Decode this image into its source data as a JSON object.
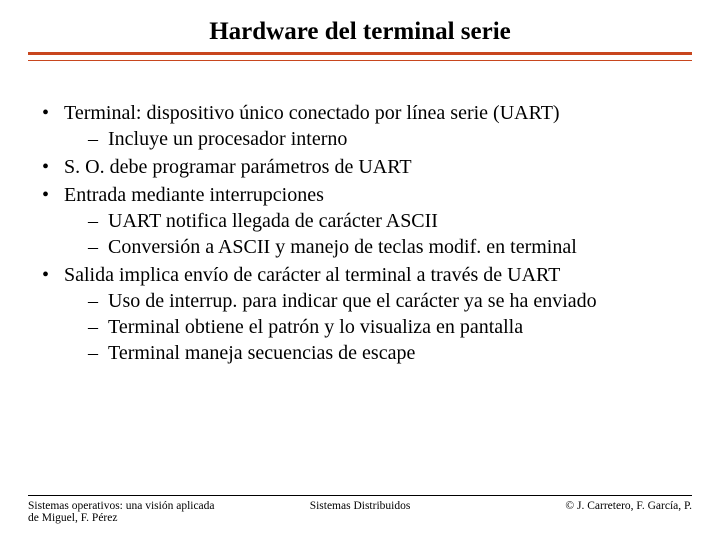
{
  "title": "Hardware del terminal serie",
  "rule_color": "#c8461e",
  "content_fontsize": 20,
  "title_fontsize": 25,
  "bullets": [
    {
      "text": "Terminal: dispositivo único conectado por línea serie (UART)",
      "sub": [
        "Incluye un procesador interno"
      ]
    },
    {
      "text": "S. O. debe programar parámetros de UART",
      "sub": []
    },
    {
      "text": "Entrada mediante interrupciones",
      "sub": [
        "UART notifica llegada de carácter ASCII",
        "Conversión a ASCII y manejo de teclas modif. en terminal"
      ]
    },
    {
      "text": "Salida implica envío de carácter al terminal a través de UART",
      "sub": [
        "Uso de interrup. para indicar que el carácter ya se ha enviado",
        "Terminal obtiene el patrón y lo visualiza en pantalla",
        "Terminal maneja secuencias de escape"
      ]
    }
  ],
  "footer": {
    "left_line1": "Sistemas operativos: una visión aplicada",
    "left_line2": "de Miguel, F. Pérez",
    "center": "Sistemas Distribuidos",
    "right": "© J. Carretero, F. García, P."
  }
}
